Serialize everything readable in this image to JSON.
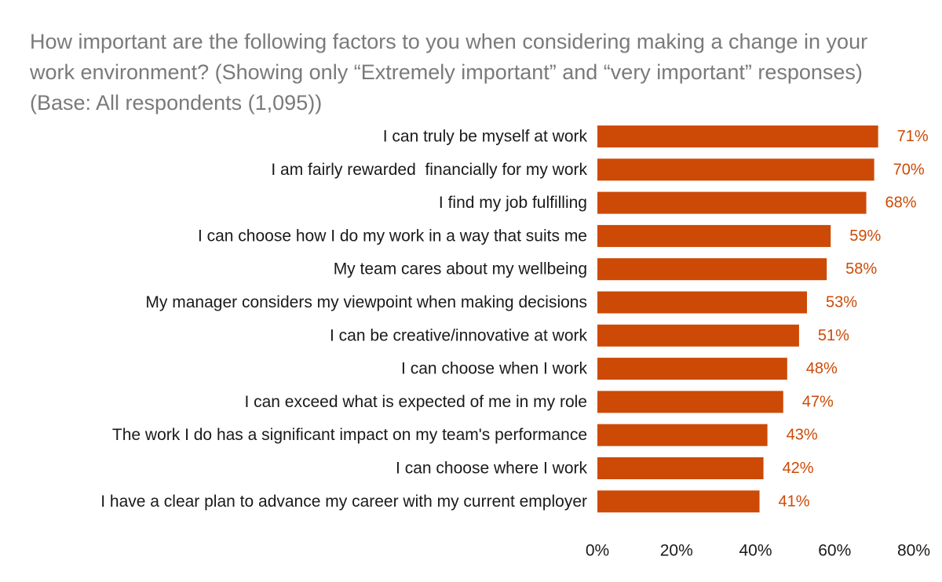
{
  "chart_data": {
    "type": "bar",
    "orientation": "horizontal",
    "title": "How important are the following factors to you when considering making a change in your work environment? (Showing only “Extremely important” and “very important” responses) (Base: All respondents (1,095))",
    "categories": [
      "I can truly be myself at work",
      "I am fairly rewarded  financially for my work",
      "I find my job fulfilling",
      "I can choose how I do my work in a way that suits me",
      "My team cares about my wellbeing",
      "My manager considers my viewpoint when making decisions",
      "I can be creative/innovative at work",
      "I can choose when I work",
      "I can exceed what is expected of me in my role",
      "The work I do has a significant impact on my team's performance",
      "I can choose where I work",
      "I have a clear plan to advance my career with my current employer"
    ],
    "values": [
      71,
      70,
      68,
      59,
      58,
      53,
      51,
      48,
      47,
      43,
      42,
      41
    ],
    "value_labels": [
      "71%",
      "70%",
      "68%",
      "59%",
      "58%",
      "53%",
      "51%",
      "48%",
      "47%",
      "43%",
      "42%",
      "41%"
    ],
    "xlim": [
      0,
      80
    ],
    "xticks": [
      0,
      20,
      40,
      60,
      80
    ],
    "xtick_labels": [
      "0%",
      "20%",
      "40%",
      "60%",
      "80%"
    ],
    "grid": false,
    "bar_color": "#CC4A06",
    "label_color": "#CC4A06",
    "title_color": "#7A7A7A"
  }
}
